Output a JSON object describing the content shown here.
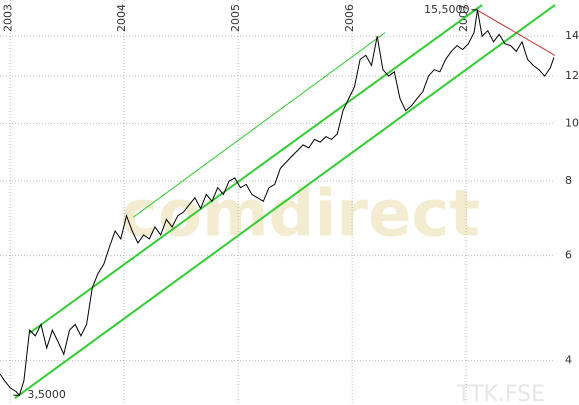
{
  "chart_data": {
    "type": "line",
    "watermark": "comdirect",
    "symbol": "TTK.FSE",
    "log_y": true,
    "grid": true,
    "xlim": [
      2002.91,
      2007.78
    ],
    "xticks": [
      2003,
      2004,
      2005,
      2006,
      2007
    ],
    "ylim": [
      3.37,
      16.1
    ],
    "yticks": [
      4,
      6,
      8,
      10,
      12,
      14
    ],
    "x": [
      2002.91,
      2002.95,
      2003.0,
      2003.05,
      2003.08,
      2003.12,
      2003.17,
      2003.22,
      2003.27,
      2003.32,
      2003.37,
      2003.42,
      2003.47,
      2003.52,
      2003.57,
      2003.62,
      2003.67,
      2003.72,
      2003.77,
      2003.82,
      2003.87,
      2003.92,
      2003.97,
      2004.02,
      2004.07,
      2004.12,
      2004.17,
      2004.22,
      2004.27,
      2004.32,
      2004.37,
      2004.42,
      2004.47,
      2004.52,
      2004.57,
      2004.62,
      2004.67,
      2004.72,
      2004.77,
      2004.82,
      2004.87,
      2004.92,
      2004.97,
      2005.02,
      2005.07,
      2005.12,
      2005.17,
      2005.22,
      2005.27,
      2005.32,
      2005.37,
      2005.42,
      2005.47,
      2005.52,
      2005.57,
      2005.62,
      2005.67,
      2005.72,
      2005.77,
      2005.82,
      2005.87,
      2005.92,
      2005.97,
      2006.02,
      2006.07,
      2006.12,
      2006.17,
      2006.22,
      2006.27,
      2006.32,
      2006.37,
      2006.42,
      2006.47,
      2006.52,
      2006.57,
      2006.62,
      2006.67,
      2006.72,
      2006.77,
      2006.82,
      2006.87,
      2006.92,
      2006.97,
      2007.02,
      2007.07,
      2007.1,
      2007.14,
      2007.19,
      2007.24,
      2007.29,
      2007.34,
      2007.39,
      2007.44,
      2007.49,
      2007.54,
      2007.59,
      2007.64,
      2007.69,
      2007.74,
      2007.77
    ],
    "series": [
      {
        "color": "#000000",
        "values": [
          3.8,
          3.7,
          3.6,
          3.55,
          3.5,
          3.7,
          4.5,
          4.4,
          4.6,
          4.2,
          4.5,
          4.3,
          4.1,
          4.5,
          4.6,
          4.4,
          4.6,
          5.3,
          5.6,
          5.8,
          6.2,
          6.6,
          6.4,
          7.0,
          6.6,
          6.3,
          6.5,
          6.4,
          6.7,
          6.5,
          6.9,
          6.7,
          7.0,
          7.1,
          7.3,
          7.5,
          7.2,
          7.6,
          7.4,
          7.8,
          7.6,
          8.0,
          8.1,
          7.8,
          7.9,
          7.6,
          7.5,
          7.4,
          7.8,
          7.9,
          8.4,
          8.6,
          8.8,
          9.0,
          9.2,
          9.1,
          9.4,
          9.3,
          9.5,
          9.4,
          9.6,
          10.5,
          11.0,
          11.5,
          12.8,
          13.0,
          12.5,
          14.0,
          12.3,
          12.0,
          12.2,
          11.0,
          10.5,
          10.7,
          11.0,
          11.3,
          12.0,
          12.3,
          12.2,
          12.8,
          13.2,
          13.5,
          13.3,
          13.6,
          14.2,
          15.5,
          14.0,
          14.3,
          13.7,
          14.1,
          13.6,
          13.5,
          13.2,
          13.7,
          12.8,
          12.5,
          12.3,
          12.0,
          12.4,
          12.9
        ]
      }
    ],
    "trend_lines": [
      {
        "color": "#33cc33",
        "width": 1,
        "x": [
          2004.08,
          2006.29
        ],
        "values": [
          6.96,
          14.2
        ]
      },
      {
        "color": "#33cc33",
        "width": 2,
        "x": [
          2003.17,
          2007.14
        ],
        "values": [
          4.45,
          15.8
        ]
      },
      {
        "color": "#33cc33",
        "width": 2,
        "x": [
          2003.04,
          2007.78
        ],
        "values": [
          3.46,
          15.8
        ]
      },
      {
        "color": "#cc3333",
        "width": 1,
        "x": [
          2007.1,
          2007.78
        ],
        "values": [
          15.47,
          13.0
        ]
      }
    ],
    "annotations": [
      {
        "label": "15,5000",
        "value": 15.5,
        "x": 2007.1
      },
      {
        "label": "3,5000",
        "value": 3.5,
        "x": 2003.08
      }
    ]
  }
}
